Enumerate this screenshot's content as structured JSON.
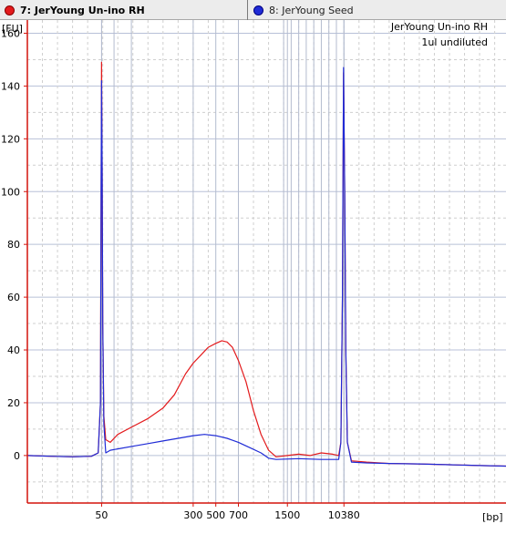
{
  "tabs": [
    {
      "label": "7: JerYoung Un-ino RH",
      "color": "#e31a1c",
      "active": true
    },
    {
      "label": "8: JerYoung Seed",
      "color": "#1f2bd6",
      "active": false
    }
  ],
  "chart_data": {
    "type": "line",
    "annotation_lines": [
      "JerYoung Un-ino RH",
      "1ul undiluted"
    ],
    "ylabel": "[FU]",
    "xlabel": "[bp]",
    "ylim": [
      -18,
      165
    ],
    "grid": true,
    "y_ticks": [
      0,
      20,
      40,
      60,
      80,
      100,
      120,
      140,
      160
    ],
    "x_ticks": [
      {
        "label": "50",
        "t": 9.85
      },
      {
        "label": "300",
        "t": 22.0
      },
      {
        "label": "500",
        "t": 25.0
      },
      {
        "label": "700",
        "t": 28.0
      },
      {
        "label": "1500",
        "t": 34.5
      },
      {
        "label": "10380",
        "t": 42.0
      }
    ],
    "x_range_t": [
      0,
      63.5
    ],
    "ladder_t": [
      9.85,
      11.5,
      13.8,
      34.0,
      35.0,
      36.0,
      37.0,
      38.0,
      39.0,
      40.0,
      41.0,
      42.0
    ],
    "series": [
      {
        "name": "7: JerYoung Un-ino RH",
        "color": "#e31a1c",
        "points": [
          [
            0,
            0
          ],
          [
            3,
            -0.3
          ],
          [
            6,
            -0.5
          ],
          [
            8.5,
            -0.3
          ],
          [
            9.4,
            1
          ],
          [
            9.7,
            20
          ],
          [
            9.78,
            100
          ],
          [
            9.85,
            149
          ],
          [
            9.92,
            110
          ],
          [
            10.0,
            50
          ],
          [
            10.15,
            15
          ],
          [
            10.4,
            6
          ],
          [
            11,
            5
          ],
          [
            12,
            8
          ],
          [
            14,
            11
          ],
          [
            16,
            14
          ],
          [
            18,
            18
          ],
          [
            19.5,
            23
          ],
          [
            21,
            31
          ],
          [
            22,
            35
          ],
          [
            23,
            38
          ],
          [
            24,
            41
          ],
          [
            25,
            42.5
          ],
          [
            25.8,
            43.5
          ],
          [
            26.5,
            43
          ],
          [
            27.2,
            41
          ],
          [
            28,
            36
          ],
          [
            29,
            28
          ],
          [
            30,
            17
          ],
          [
            31,
            8
          ],
          [
            32,
            2
          ],
          [
            33,
            -0.5
          ],
          [
            34.5,
            0
          ],
          [
            36,
            0.5
          ],
          [
            37.5,
            0
          ],
          [
            39,
            1
          ],
          [
            40.5,
            0.5
          ],
          [
            41.3,
            0
          ],
          [
            41.6,
            5
          ],
          [
            41.8,
            60
          ],
          [
            41.95,
            145
          ],
          [
            42.1,
            100
          ],
          [
            42.25,
            40
          ],
          [
            42.45,
            5
          ],
          [
            43,
            -2
          ],
          [
            45,
            -2.5
          ],
          [
            48,
            -3
          ],
          [
            52,
            -3.2
          ],
          [
            56,
            -3.5
          ],
          [
            60,
            -3.8
          ],
          [
            63.5,
            -4
          ]
        ]
      },
      {
        "name": "8: JerYoung Seed",
        "color": "#1f2bd6",
        "points": [
          [
            0,
            0
          ],
          [
            3,
            -0.3
          ],
          [
            6,
            -0.5
          ],
          [
            8.5,
            -0.3
          ],
          [
            9.4,
            1
          ],
          [
            9.7,
            20
          ],
          [
            9.78,
            100
          ],
          [
            9.85,
            142
          ],
          [
            9.92,
            110
          ],
          [
            10.0,
            50
          ],
          [
            10.15,
            12
          ],
          [
            10.4,
            1
          ],
          [
            11,
            2
          ],
          [
            12,
            2.5
          ],
          [
            14,
            3.5
          ],
          [
            16,
            4.5
          ],
          [
            18,
            5.5
          ],
          [
            20,
            6.5
          ],
          [
            22,
            7.5
          ],
          [
            23.5,
            8
          ],
          [
            25,
            7.5
          ],
          [
            26.5,
            6.5
          ],
          [
            28,
            5
          ],
          [
            29.5,
            3
          ],
          [
            31,
            1
          ],
          [
            32,
            -1
          ],
          [
            33,
            -1.5
          ],
          [
            36,
            -1.2
          ],
          [
            39,
            -1.5
          ],
          [
            41.3,
            -1.5
          ],
          [
            41.6,
            5
          ],
          [
            41.8,
            60
          ],
          [
            41.95,
            147
          ],
          [
            42.1,
            100
          ],
          [
            42.25,
            40
          ],
          [
            42.45,
            5
          ],
          [
            43,
            -2.5
          ],
          [
            45,
            -2.8
          ],
          [
            48,
            -3
          ],
          [
            52,
            -3.2
          ],
          [
            56,
            -3.5
          ],
          [
            60,
            -3.8
          ],
          [
            63.5,
            -4
          ]
        ]
      }
    ]
  }
}
